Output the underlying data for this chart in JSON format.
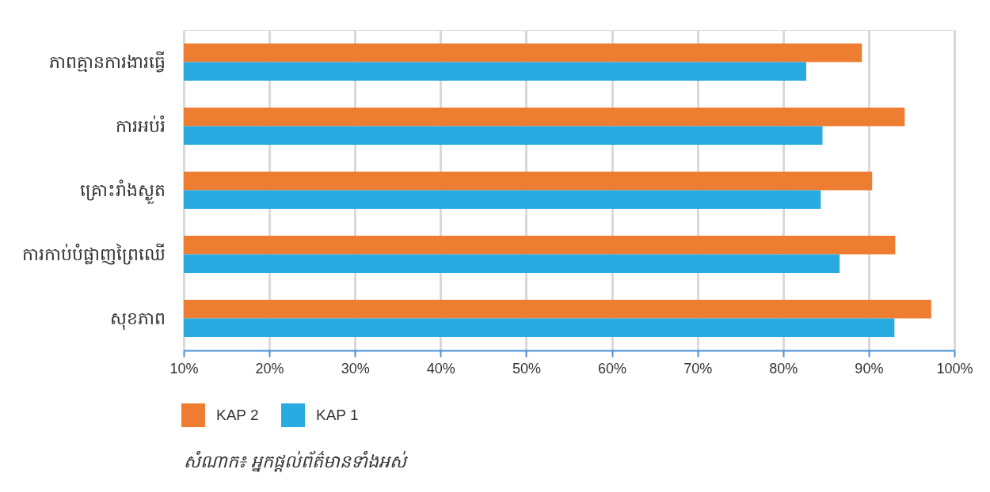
{
  "chart_data": {
    "type": "bar",
    "orientation": "horizontal",
    "categories": [
      "ភាពគ្មានការងារធ្វើ",
      "ការអប់រំ",
      "គ្រោះរាំងស្ងួត",
      "ការកាប់បំផ្លាញព្រៃឈើ",
      "សុខភាព"
    ],
    "series": [
      {
        "name": "KAP 2",
        "color": "#ed7d31",
        "values": [
          89.2,
          94.2,
          90.4,
          93.1,
          97.3
        ]
      },
      {
        "name": "KAP 1",
        "color": "#29abe2",
        "values": [
          82.7,
          84.6,
          84.4,
          86.6,
          93.0
        ]
      }
    ],
    "xlim": [
      10,
      100
    ],
    "xticks": [
      {
        "value": 10,
        "label": "10%"
      },
      {
        "value": 20,
        "label": "20%"
      },
      {
        "value": 30,
        "label": "30%"
      },
      {
        "value": 40,
        "label": "40%"
      },
      {
        "value": 50,
        "label": "50%"
      },
      {
        "value": 60,
        "label": "60%"
      },
      {
        "value": 70,
        "label": "70%"
      },
      {
        "value": 80,
        "label": "80%"
      },
      {
        "value": 90,
        "label": "90%"
      },
      {
        "value": 100,
        "label": "100%"
      }
    ],
    "grid": "x",
    "legend": "bottom left",
    "annotations": [
      "សំណាក៖ អ្នកផ្តល់ព័ត៌មានទាំងអស់"
    ]
  }
}
